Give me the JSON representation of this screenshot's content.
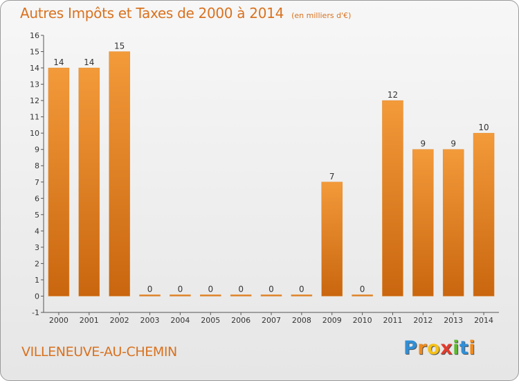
{
  "title": "Autres Impôts et Taxes de 2000 à 2014",
  "unit": "(en milliers d'€)",
  "commune": "VILLENEUVE-AU-CHEMIN",
  "logo": {
    "letters": [
      "P",
      "r",
      "o",
      "x",
      "i",
      "t",
      "i"
    ],
    "colors": [
      "#2f8fd8",
      "#f08a1c",
      "#f6c119",
      "#e23b2d",
      "#5fb833",
      "#2f8fd8",
      "#f08a1c"
    ]
  },
  "colors": {
    "bar": "#f39a3a",
    "bar_dark": "#c9660f",
    "title": "#d9711e"
  },
  "chart_data": {
    "type": "bar",
    "title": "Autres Impôts et Taxes de 2000 à 2014",
    "categories": [
      "2000",
      "2001",
      "2002",
      "2003",
      "2004",
      "2005",
      "2006",
      "2007",
      "2008",
      "2009",
      "2010",
      "2011",
      "2012",
      "2013",
      "2014"
    ],
    "values": [
      14,
      14,
      15,
      0,
      0,
      0,
      0,
      0,
      0,
      7,
      0,
      12,
      9,
      9,
      10
    ],
    "ylim": [
      -1,
      16
    ],
    "yticks": [
      -1,
      0,
      1,
      2,
      3,
      4,
      5,
      6,
      7,
      8,
      9,
      10,
      11,
      12,
      13,
      14,
      15,
      16
    ],
    "grid": false
  }
}
